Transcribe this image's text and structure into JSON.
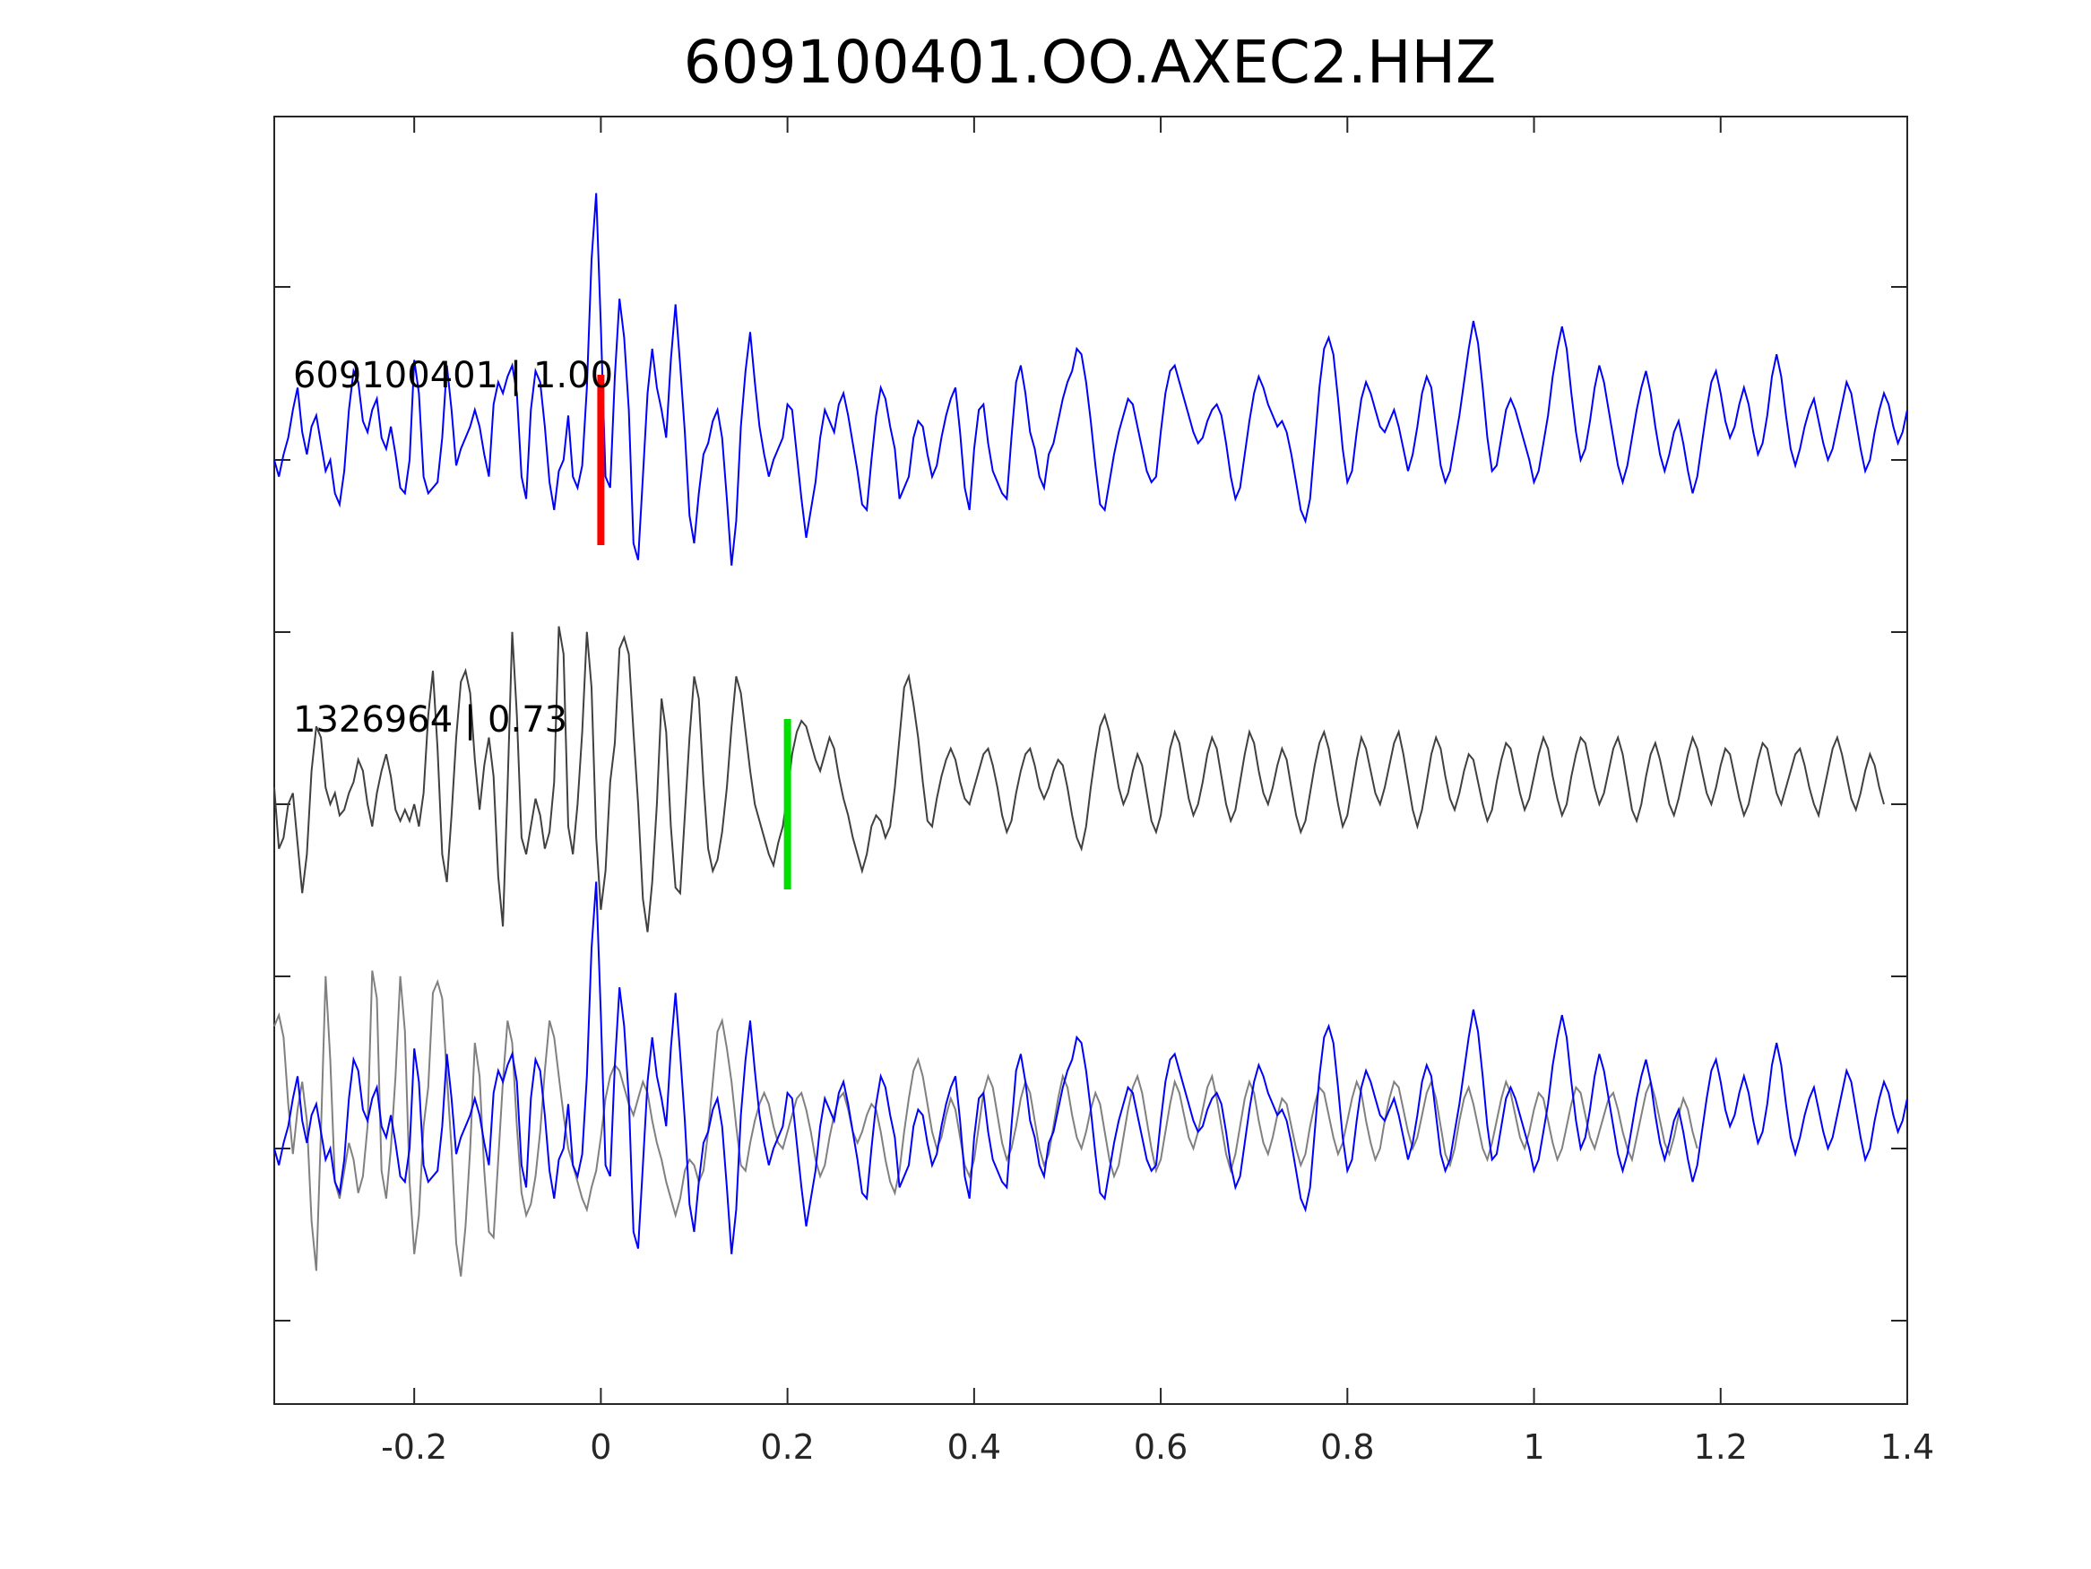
{
  "chart_data": {
    "type": "line",
    "title": "609100401.OO.AXEC2.HHZ",
    "xlabel": "",
    "ylabel": "",
    "xlim": [
      -0.35,
      1.4
    ],
    "x_ticks": [
      -0.2,
      0,
      0.2,
      0.4,
      0.6,
      0.8,
      1,
      1.2,
      1.4
    ],
    "x_tick_labels": [
      "-0.2",
      "0",
      "0.2",
      "0.4",
      "0.6",
      "0.8",
      "1",
      "1.2",
      "1.4"
    ],
    "grid": false,
    "y_axis_labels_shown": false,
    "sample_interval": 0.005,
    "traces": [
      {
        "id": "master",
        "label": "609100401 | 1.00",
        "color": "#0000ff",
        "pick_time": 0.0,
        "pick_color": "#ff0000",
        "offset_index": 0
      },
      {
        "id": "match",
        "label": "1326964 | 0.73",
        "color": "#404040",
        "pick_time": 0.2,
        "pick_color": "#00e000",
        "offset_index": 1
      }
    ],
    "overlay": {
      "offset_index": 2,
      "series": [
        {
          "id": "match-aligned",
          "color": "#808080",
          "pick_shift": 0.2
        },
        {
          "id": "master-aligned",
          "color": "#0000ff",
          "pick_shift": 0.0
        }
      ]
    },
    "series": [
      {
        "name": "609100401",
        "color": "#0000ff",
        "x_start": -0.35,
        "dx": 0.005,
        "values": [
          0.0,
          -0.3,
          0.1,
          0.4,
          0.9,
          1.3,
          0.5,
          0.1,
          0.6,
          0.8,
          0.3,
          -0.2,
          0.0,
          -0.6,
          -0.8,
          -0.2,
          0.9,
          1.6,
          1.4,
          0.7,
          0.5,
          0.9,
          1.1,
          0.4,
          0.2,
          0.6,
          0.1,
          -0.5,
          -0.6,
          0.0,
          1.8,
          1.2,
          -0.3,
          -0.6,
          -0.5,
          -0.4,
          0.4,
          1.7,
          0.9,
          -0.1,
          0.2,
          0.4,
          0.6,
          0.9,
          0.6,
          0.1,
          -0.3,
          1.0,
          1.4,
          1.2,
          1.5,
          1.7,
          1.2,
          -0.3,
          -0.7,
          0.9,
          1.6,
          1.4,
          0.6,
          -0.4,
          -0.9,
          -0.2,
          0.0,
          0.8,
          -0.3,
          -0.5,
          -0.1,
          1.3,
          3.6,
          4.8,
          2.4,
          -0.3,
          -0.5,
          1.5,
          2.9,
          2.2,
          0.9,
          -1.5,
          -1.8,
          -0.3,
          1.2,
          2.0,
          1.3,
          0.9,
          0.4,
          1.8,
          2.8,
          1.7,
          0.5,
          -1.0,
          -1.5,
          -0.6,
          0.1,
          0.3,
          0.7,
          0.9,
          0.4,
          -0.7,
          -1.9,
          -1.1,
          0.6,
          1.6,
          2.3,
          1.4,
          0.6,
          0.1,
          -0.3,
          0.0,
          0.2,
          0.4,
          1.0,
          0.9,
          0.1,
          -0.7,
          -1.4,
          -0.9,
          -0.4,
          0.4,
          0.9,
          0.7,
          0.5,
          1.0,
          1.2,
          0.8,
          0.3,
          -0.2,
          -0.8,
          -0.9,
          0.0,
          0.8,
          1.3,
          1.1,
          0.6,
          0.2,
          -0.7,
          -0.5,
          -0.3,
          0.4,
          0.7,
          0.6,
          0.1,
          -0.3,
          -0.1,
          0.4,
          0.8,
          1.1,
          1.3,
          0.5,
          -0.5,
          -0.9,
          0.2,
          0.9,
          1.0,
          0.3,
          -0.2,
          -0.4,
          -0.6,
          -0.7,
          0.4,
          1.4,
          1.7,
          1.2,
          0.5,
          0.2,
          -0.3,
          -0.5,
          0.1,
          0.3,
          0.7,
          1.1,
          1.4,
          1.6,
          2.0,
          1.9,
          1.4,
          0.7,
          -0.1,
          -0.8,
          -0.9,
          -0.4,
          0.1,
          0.5,
          0.8,
          1.1,
          1.0,
          0.6,
          0.2,
          -0.2,
          -0.4,
          -0.3,
          0.5,
          1.2,
          1.6,
          1.7,
          1.4,
          1.1,
          0.8,
          0.5,
          0.3,
          0.4,
          0.7,
          0.9,
          1.0,
          0.8,
          0.3,
          -0.3,
          -0.7,
          -0.5,
          0.1,
          0.7,
          1.2,
          1.5,
          1.3,
          1.0,
          0.8,
          0.6,
          0.7,
          0.5,
          0.1,
          -0.4,
          -0.9,
          -1.1,
          -0.7,
          0.3,
          1.3,
          2.0,
          2.2,
          1.9,
          1.1,
          0.2,
          -0.4,
          -0.2,
          0.5,
          1.1,
          1.4,
          1.2,
          0.9,
          0.6,
          0.5,
          0.7,
          0.9,
          0.6,
          0.2,
          -0.2,
          0.1,
          0.6,
          1.2,
          1.5,
          1.3,
          0.6,
          -0.1,
          -0.4,
          -0.2,
          0.3,
          0.8,
          1.4,
          2.0,
          2.5,
          2.1,
          1.3,
          0.4,
          -0.2,
          -0.1,
          0.4,
          0.9,
          1.1,
          0.9,
          0.6,
          0.3,
          0.0,
          -0.4,
          -0.2,
          0.3,
          0.8,
          1.5,
          2.0,
          2.4,
          2.0,
          1.2,
          0.5,
          0.0,
          0.2,
          0.7,
          1.3,
          1.7,
          1.4,
          0.9,
          0.4,
          -0.1,
          -0.4,
          -0.1,
          0.4,
          0.9,
          1.3,
          1.6,
          1.2,
          0.6,
          0.1,
          -0.2,
          0.1,
          0.5,
          0.7,
          0.3,
          -0.2,
          -0.6,
          -0.3,
          0.3,
          0.9,
          1.4,
          1.6,
          1.2,
          0.7,
          0.4,
          0.6,
          1.0,
          1.3,
          1.0,
          0.5,
          0.1,
          0.3,
          0.8,
          1.5,
          1.9,
          1.5,
          0.8,
          0.2,
          -0.1,
          0.2,
          0.6,
          0.9,
          1.1,
          0.7,
          0.3,
          0.0,
          0.2,
          0.6,
          1.0,
          1.4,
          1.2,
          0.7,
          0.2,
          -0.2,
          0.0,
          0.5,
          0.9,
          1.2,
          1.0,
          0.6,
          0.3,
          0.5,
          0.9,
          1.2,
          0.8,
          0.3,
          -0.1,
          -0.3
        ]
      },
      {
        "name": "1326964",
        "color": "#404040",
        "x_start": -0.35,
        "dx": 0.005,
        "values": [
          0.3,
          -0.8,
          -0.6,
          0.0,
          0.2,
          -0.7,
          -1.6,
          -0.9,
          0.6,
          1.4,
          1.2,
          0.3,
          0.0,
          0.2,
          -0.2,
          -0.1,
          0.2,
          0.4,
          0.8,
          0.6,
          0.0,
          -0.4,
          0.2,
          0.6,
          0.9,
          0.5,
          -0.1,
          -0.3,
          -0.1,
          -0.3,
          0.0,
          -0.4,
          0.2,
          1.6,
          2.4,
          1.0,
          -0.9,
          -1.4,
          -0.2,
          1.2,
          2.2,
          2.4,
          2.0,
          0.8,
          -0.1,
          0.7,
          1.2,
          0.5,
          -1.3,
          -2.2,
          0.3,
          3.1,
          1.6,
          -0.6,
          -0.9,
          -0.4,
          0.1,
          -0.2,
          -0.8,
          -0.5,
          0.4,
          3.2,
          2.7,
          -0.4,
          -0.9,
          0.0,
          1.3,
          3.1,
          2.1,
          -0.6,
          -1.9,
          -1.2,
          0.4,
          1.1,
          2.8,
          3.0,
          2.7,
          1.3,
          0.0,
          -1.7,
          -2.3,
          -1.4,
          0.0,
          1.9,
          1.3,
          -0.4,
          -1.5,
          -1.6,
          -0.2,
          1.2,
          2.3,
          1.9,
          0.4,
          -0.8,
          -1.2,
          -1.0,
          -0.5,
          0.3,
          1.4,
          2.3,
          2.0,
          1.3,
          0.6,
          0.0,
          -0.3,
          -0.6,
          -0.9,
          -1.1,
          -0.7,
          -0.4,
          0.2,
          0.9,
          1.3,
          1.5,
          1.4,
          1.1,
          0.8,
          0.6,
          0.9,
          1.2,
          1.0,
          0.5,
          0.1,
          -0.2,
          -0.6,
          -0.9,
          -1.2,
          -0.9,
          -0.4,
          -0.2,
          -0.3,
          -0.6,
          -0.4,
          0.3,
          1.2,
          2.1,
          2.3,
          1.8,
          1.2,
          0.4,
          -0.3,
          -0.4,
          0.1,
          0.5,
          0.8,
          1.0,
          0.8,
          0.4,
          0.1,
          0.0,
          0.3,
          0.6,
          0.9,
          1.0,
          0.7,
          0.3,
          -0.2,
          -0.5,
          -0.3,
          0.2,
          0.6,
          0.9,
          1.0,
          0.7,
          0.3,
          0.1,
          0.3,
          0.6,
          0.8,
          0.7,
          0.3,
          -0.2,
          -0.6,
          -0.8,
          -0.4,
          0.3,
          0.9,
          1.4,
          1.6,
          1.3,
          0.8,
          0.3,
          0.0,
          0.2,
          0.6,
          0.9,
          0.7,
          0.2,
          -0.3,
          -0.5,
          -0.2,
          0.4,
          1.0,
          1.3,
          1.1,
          0.6,
          0.1,
          -0.2,
          0.0,
          0.4,
          0.9,
          1.2,
          1.0,
          0.5,
          0.0,
          -0.3,
          -0.1,
          0.4,
          0.9,
          1.3,
          1.1,
          0.6,
          0.2,
          0.0,
          0.3,
          0.7,
          1.0,
          0.8,
          0.3,
          -0.2,
          -0.5,
          -0.3,
          0.2,
          0.7,
          1.1,
          1.3,
          1.0,
          0.5,
          0.0,
          -0.4,
          -0.2,
          0.3,
          0.8,
          1.2,
          1.0,
          0.6,
          0.2,
          0.0,
          0.3,
          0.7,
          1.1,
          1.3,
          0.9,
          0.4,
          -0.1,
          -0.4,
          -0.1,
          0.4,
          0.9,
          1.2,
          1.0,
          0.5,
          0.1,
          -0.1,
          0.2,
          0.6,
          0.9,
          0.8,
          0.4,
          0.0,
          -0.3,
          -0.1,
          0.4,
          0.8,
          1.1,
          1.0,
          0.6,
          0.2,
          -0.1,
          0.1,
          0.5,
          0.9,
          1.2,
          1.0,
          0.5,
          0.1,
          -0.2,
          0.0,
          0.5,
          0.9,
          1.2,
          1.1,
          0.7,
          0.3,
          0.0,
          0.2,
          0.6,
          1.0,
          1.2,
          0.9,
          0.4,
          -0.1,
          -0.3,
          0.0,
          0.5,
          0.9,
          1.1,
          0.8,
          0.4,
          0.0,
          -0.2,
          0.1,
          0.5,
          0.9,
          1.2,
          1.0,
          0.6,
          0.2,
          0.0,
          0.3,
          0.7,
          1.0,
          0.9,
          0.5,
          0.1,
          -0.2,
          0.0,
          0.4,
          0.8,
          1.1,
          1.0,
          0.6,
          0.2,
          0.0,
          0.3,
          0.6,
          0.9,
          1.0,
          0.7,
          0.3,
          0.0,
          -0.2,
          0.2,
          0.6,
          1.0,
          1.2,
          0.9,
          0.5,
          0.1,
          -0.1,
          0.2,
          0.6,
          0.9,
          0.7,
          0.3,
          0.0
        ]
      }
    ]
  }
}
